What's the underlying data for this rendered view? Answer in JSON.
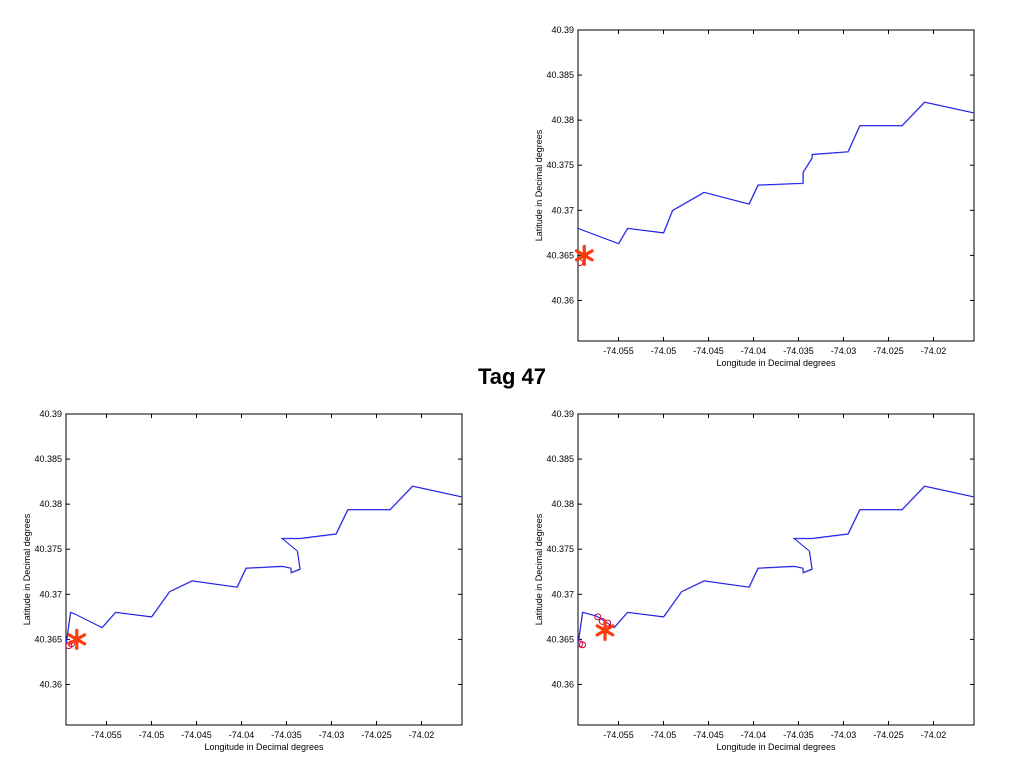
{
  "page_title": "Tag 47",
  "colors": {
    "track": "#1a1ae6",
    "marker": "#ff3a0a",
    "circle": "#cc0033"
  },
  "chart_data": [
    {
      "type": "line",
      "xlabel": "Longitude in Decimal degrees",
      "ylabel": "Latitude in Decimal degrees",
      "xlim": [
        -74.0595,
        -74.0155
      ],
      "ylim": [
        40.3555,
        40.39
      ],
      "xticks": [
        -74.055,
        -74.05,
        -74.045,
        -74.04,
        -74.035,
        -74.03,
        -74.025,
        -74.02
      ],
      "xtick_labels": [
        "-74.055",
        "-74.05",
        "-74.045",
        "-74.04",
        "-74.035",
        "-74.03",
        "-74.025",
        "-74.02"
      ],
      "yticks": [
        40.36,
        40.365,
        40.37,
        40.375,
        40.38,
        40.385,
        40.39
      ],
      "ytick_labels": [
        "40.36",
        "40.365",
        "40.37",
        "40.375",
        "40.38",
        "40.385",
        "40.39"
      ],
      "grid": false,
      "series": [
        {
          "x": [
            -74.0595,
            -74.055,
            -74.054,
            -74.05,
            -74.049,
            -74.0455,
            -74.0405,
            -74.0395,
            -74.0345,
            -74.0345,
            -74.0335,
            -74.0335,
            -74.0295,
            -74.0282,
            -74.0235,
            -74.021,
            -74.0155
          ],
          "y": [
            40.368,
            40.3663,
            40.368,
            40.3675,
            40.37,
            40.372,
            40.3707,
            40.3728,
            40.373,
            40.3742,
            40.3758,
            40.3762,
            40.3765,
            40.3794,
            40.3794,
            40.382,
            40.3808
          ]
        }
      ],
      "markers": [
        {
          "x": -74.0588,
          "y": 40.365,
          "symbol": "asterisk"
        }
      ],
      "circles": [
        {
          "x": -74.0593,
          "y": 40.3642
        }
      ]
    },
    {
      "type": "line",
      "xlabel": "Longitude in Decimal degrees",
      "ylabel": "Latitude in Decimal degrees",
      "xlim": [
        -74.0595,
        -74.0155
      ],
      "ylim": [
        40.3555,
        40.39
      ],
      "xticks": [
        -74.055,
        -74.05,
        -74.045,
        -74.04,
        -74.035,
        -74.03,
        -74.025,
        -74.02
      ],
      "xtick_labels": [
        "-74.055",
        "-74.05",
        "-74.045",
        "-74.04",
        "-74.035",
        "-74.03",
        "-74.025",
        "-74.02"
      ],
      "yticks": [
        40.36,
        40.365,
        40.37,
        40.375,
        40.38,
        40.385,
        40.39
      ],
      "ytick_labels": [
        "40.36",
        "40.365",
        "40.37",
        "40.375",
        "40.38",
        "40.385",
        "40.39"
      ],
      "grid": false,
      "series": [
        {
          "x": [
            -74.0595,
            -74.059,
            -74.0585,
            -74.0565,
            -74.0555,
            -74.054,
            -74.05,
            -74.048,
            -74.0455,
            -74.0405,
            -74.0395,
            -74.0355,
            -74.0345,
            -74.0345,
            -74.0335,
            -74.0338,
            -74.0355,
            -74.0335,
            -74.0295,
            -74.0282,
            -74.0235,
            -74.021,
            -74.0155
          ],
          "y": [
            40.3645,
            40.368,
            40.3678,
            40.3668,
            40.3663,
            40.368,
            40.3675,
            40.3703,
            40.3715,
            40.3708,
            40.3729,
            40.3731,
            40.3729,
            40.3724,
            40.3728,
            40.3748,
            40.3762,
            40.3762,
            40.3767,
            40.3794,
            40.3794,
            40.382,
            40.3808
          ]
        }
      ],
      "markers": [
        {
          "x": -74.0583,
          "y": 40.365,
          "symbol": "asterisk"
        }
      ],
      "circles": [
        {
          "x": -74.0592,
          "y": 40.3643
        },
        {
          "x": -74.0589,
          "y": 40.3645
        }
      ]
    },
    {
      "type": "line",
      "xlabel": "Longitude in Decimal degrees",
      "ylabel": "Latitude in Decimal degrees",
      "xlim": [
        -74.0595,
        -74.0155
      ],
      "ylim": [
        40.3555,
        40.39
      ],
      "xticks": [
        -74.055,
        -74.05,
        -74.045,
        -74.04,
        -74.035,
        -74.03,
        -74.025,
        -74.02
      ],
      "xtick_labels": [
        "-74.055",
        "-74.05",
        "-74.045",
        "-74.04",
        "-74.035",
        "-74.03",
        "-74.025",
        "-74.02"
      ],
      "yticks": [
        40.36,
        40.365,
        40.37,
        40.375,
        40.38,
        40.385,
        40.39
      ],
      "ytick_labels": [
        "40.36",
        "40.365",
        "40.37",
        "40.375",
        "40.38",
        "40.385",
        "40.39"
      ],
      "grid": false,
      "series": [
        {
          "x": [
            -74.0595,
            -74.059,
            -74.0575,
            -74.0565,
            -74.0555,
            -74.054,
            -74.05,
            -74.048,
            -74.0455,
            -74.0405,
            -74.0395,
            -74.0355,
            -74.0345,
            -74.0345,
            -74.0335,
            -74.0338,
            -74.0355,
            -74.0335,
            -74.0295,
            -74.0282,
            -74.0235,
            -74.021,
            -74.0155
          ],
          "y": [
            40.3645,
            40.368,
            40.3676,
            40.367,
            40.3663,
            40.368,
            40.3675,
            40.3703,
            40.3715,
            40.3708,
            40.3729,
            40.3731,
            40.3729,
            40.3724,
            40.3728,
            40.3748,
            40.3762,
            40.3762,
            40.3767,
            40.3794,
            40.3794,
            40.382,
            40.3808
          ]
        }
      ],
      "markers": [
        {
          "x": -74.0565,
          "y": 40.366,
          "symbol": "asterisk"
        }
      ],
      "circles": [
        {
          "x": -74.059,
          "y": 40.3644
        },
        {
          "x": -74.0593,
          "y": 40.3645
        },
        {
          "x": -74.0573,
          "y": 40.3675
        },
        {
          "x": -74.0568,
          "y": 40.367
        },
        {
          "x": -74.0562,
          "y": 40.3668
        }
      ]
    }
  ]
}
